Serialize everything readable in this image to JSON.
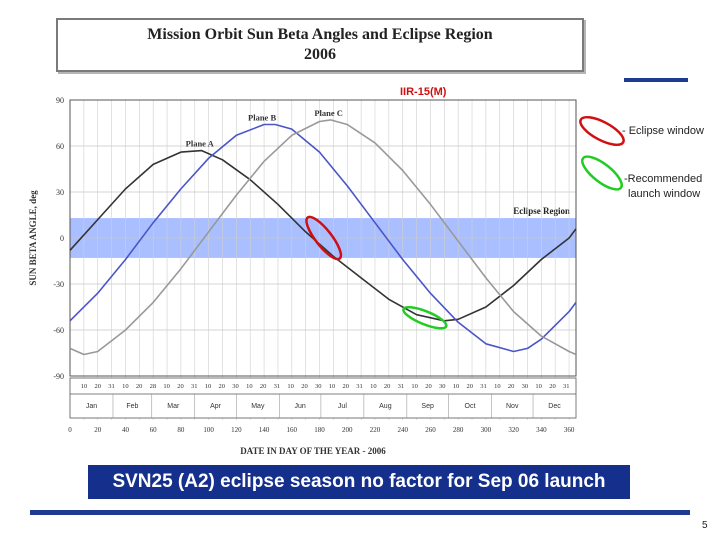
{
  "slide": {
    "title_line1": "Mission Orbit Sun Beta Angles and Eclipse Region",
    "title_line2": "2006",
    "satellite_label": "IIR-15(M)",
    "legend_eclipse": "- Eclipse window",
    "legend_launch_line1": "-Recommended",
    "legend_launch_line2": "launch window",
    "banner": "SVN25 (A2) eclipse season no factor for Sep 06 launch",
    "page_number": "5",
    "accent_color": "#1f3a93",
    "eclipse_marker_color": "#d01010",
    "launch_marker_color": "#22cc22"
  },
  "chart_data": {
    "type": "line",
    "xlabel": "DATE IN DAY OF THE YEAR - 2006",
    "ylabel": "SUN BETA ANGLE, deg",
    "xlim": [
      0,
      365
    ],
    "ylim": [
      -90,
      90
    ],
    "y_ticks": [
      -90,
      -60,
      -30,
      0,
      30,
      60,
      90
    ],
    "x_ticks": [
      0,
      20,
      40,
      60,
      80,
      100,
      120,
      140,
      160,
      180,
      200,
      220,
      240,
      260,
      280,
      300,
      320,
      340,
      360
    ],
    "eclipse_region": {
      "label": "Eclipse Region",
      "ymin": -13,
      "ymax": 13,
      "color": "#9ab4ff"
    },
    "months": [
      "Jan",
      "Feb",
      "Mar",
      "Apr",
      "May",
      "Jun",
      "Jul",
      "Aug",
      "Sep",
      "Oct",
      "Nov",
      "Dec"
    ],
    "month_day_ticks": [
      "10",
      "20",
      "31",
      "10",
      "20",
      "28",
      "10",
      "20",
      "31",
      "10",
      "20",
      "30",
      "10",
      "20",
      "31",
      "10",
      "20",
      "30",
      "10",
      "20",
      "31",
      "10",
      "20",
      "31",
      "10",
      "20",
      "30",
      "10",
      "20",
      "31",
      "10",
      "20",
      "30",
      "10",
      "20",
      "31"
    ],
    "series": [
      {
        "name": "Plane A",
        "color": "#333333",
        "x": [
          0,
          20,
          40,
          60,
          80,
          95,
          110,
          130,
          150,
          170,
          190,
          210,
          230,
          250,
          270,
          280,
          300,
          320,
          340,
          360,
          365
        ],
        "y": [
          -8,
          12,
          32,
          48,
          56,
          57,
          51,
          38,
          22,
          4,
          -12,
          -26,
          -40,
          -50,
          -54,
          -53,
          -45,
          -31,
          -14,
          0,
          6
        ]
      },
      {
        "name": "Plane B",
        "color": "#4a55c8",
        "x": [
          0,
          20,
          40,
          60,
          80,
          100,
          120,
          140,
          148,
          160,
          180,
          200,
          220,
          240,
          260,
          280,
          300,
          320,
          330,
          340,
          360,
          365
        ],
        "y": [
          -54,
          -36,
          -14,
          10,
          32,
          52,
          67,
          74,
          74,
          71,
          56,
          34,
          10,
          -14,
          -36,
          -55,
          -69,
          -74,
          -72,
          -66,
          -48,
          -42
        ]
      },
      {
        "name": "Plane C",
        "color": "#999999",
        "x": [
          0,
          10,
          20,
          40,
          60,
          80,
          100,
          120,
          140,
          160,
          180,
          188,
          200,
          220,
          240,
          260,
          280,
          300,
          320,
          340,
          360,
          365
        ],
        "y": [
          -72,
          -76,
          -74,
          -60,
          -42,
          -20,
          4,
          28,
          50,
          67,
          76,
          77,
          74,
          62,
          44,
          22,
          -2,
          -26,
          -48,
          -64,
          -74,
          -76
        ]
      }
    ],
    "annotations": {
      "eclipse_window": {
        "x_center": 183,
        "y_center": 0,
        "marker": "red ellipse"
      },
      "launch_window": {
        "x_center": 256,
        "y_center": -52,
        "marker": "green ellipse"
      }
    }
  }
}
